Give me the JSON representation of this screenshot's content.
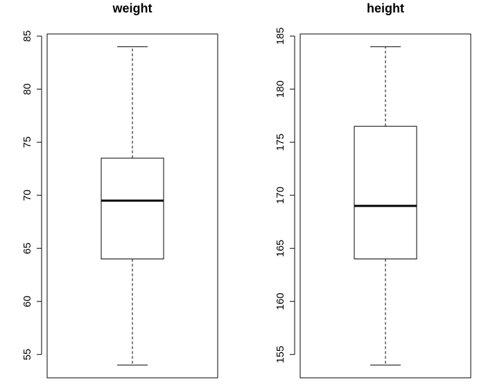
{
  "chart_data": [
    {
      "type": "box",
      "title": "weight",
      "xlabel": "",
      "ylabel": "",
      "ylim": [
        52.8,
        85.2
      ],
      "yticks": [
        55,
        60,
        65,
        70,
        75,
        80,
        85
      ],
      "grid": false,
      "stats": {
        "min": 54,
        "q1": 64,
        "median": 69.5,
        "q3": 73.5,
        "max": 84
      }
    },
    {
      "type": "box",
      "title": "height",
      "xlabel": "",
      "ylabel": "",
      "ylim": [
        152.8,
        185.2
      ],
      "yticks": [
        155,
        160,
        165,
        170,
        175,
        180,
        185
      ],
      "grid": false,
      "stats": {
        "min": 154,
        "q1": 164,
        "median": 169,
        "q3": 176.5,
        "max": 184
      }
    }
  ]
}
